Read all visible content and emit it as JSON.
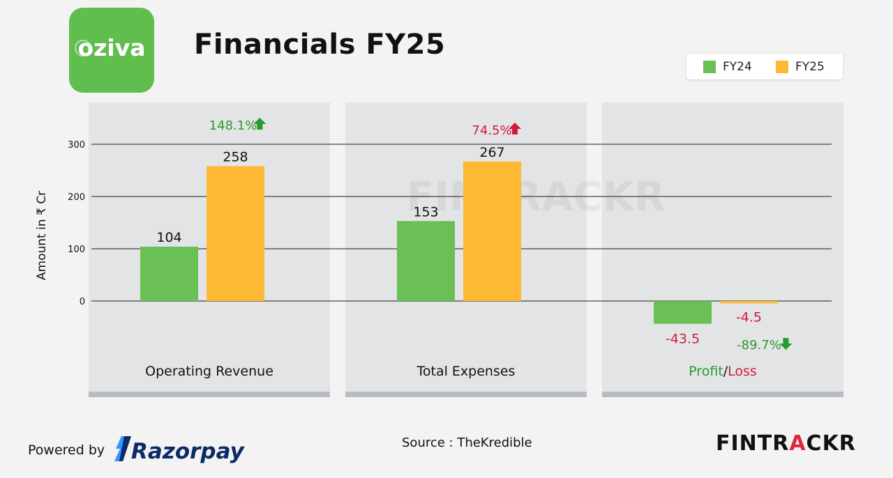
{
  "header": {
    "title": "Financials FY25",
    "logo_text": "oziva",
    "logo_color": "#5fbe4e"
  },
  "legend": [
    {
      "label": "FY24",
      "color": "#6abf55"
    },
    {
      "label": "FY25",
      "color": "#fdb933"
    }
  ],
  "chart_data": {
    "type": "bar",
    "ylabel": "Amount in ₹ Cr",
    "ylim": [
      -80,
      340
    ],
    "yticks": [
      0,
      100,
      200,
      300
    ],
    "grid": true,
    "legend_position": "top-right",
    "categories": [
      "Operating Revenue",
      "Total Expenses",
      "Profit/Loss"
    ],
    "series": [
      {
        "name": "FY24",
        "color": "#6abf55",
        "values": [
          104,
          153,
          -43.5
        ],
        "labels": [
          "104",
          "153",
          "-43.5"
        ]
      },
      {
        "name": "FY25",
        "color": "#fdb933",
        "values": [
          258,
          267,
          -4.5
        ],
        "labels": [
          "258",
          "267",
          "-4.5"
        ]
      }
    ],
    "changes": [
      {
        "text": "148.1%",
        "direction": "up",
        "color": "#2b9a2b"
      },
      {
        "text": "74.5%",
        "direction": "up",
        "color": "#d11a3f"
      },
      {
        "text": "-89.7%",
        "direction": "down",
        "color": "#2b9a2b"
      }
    ],
    "profit_loss_label": {
      "part1": "Profit",
      "sep": "/",
      "part2": "Loss",
      "color1": "#2b9a2b",
      "color2": "#d11a3f"
    },
    "watermark": "FINTRACKR"
  },
  "footer": {
    "powered_by": "Powered by",
    "sponsor": "Razorpay",
    "source": "Source : TheKredible",
    "brand_part1": "FINTR",
    "brand_accent": "A",
    "brand_part2": "CKR"
  }
}
